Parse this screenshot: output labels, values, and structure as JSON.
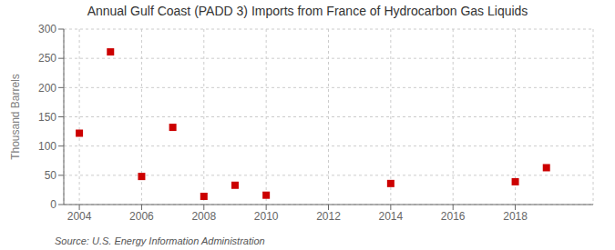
{
  "chart_data": {
    "type": "scatter",
    "title": "Annual Gulf Coast (PADD 3) Imports from France of Hydrocarbon Gas Liquids",
    "ylabel": "Thousand Barrels",
    "source": "Source: U.S. Energy Information Administration",
    "x": [
      2004,
      2005,
      2006,
      2007,
      2008,
      2009,
      2010,
      2014,
      2018,
      2019
    ],
    "values": [
      122,
      261,
      48,
      132,
      14,
      33,
      16,
      36,
      39,
      63
    ],
    "color": "#cc0000",
    "marker": "square",
    "xlim": [
      2003.5,
      2020.5
    ],
    "ylim": [
      0,
      300
    ],
    "xticks": [
      2004,
      2006,
      2008,
      2010,
      2012,
      2014,
      2016,
      2018
    ],
    "yticks": [
      0,
      50,
      100,
      150,
      200,
      250,
      300
    ],
    "grid": true
  }
}
